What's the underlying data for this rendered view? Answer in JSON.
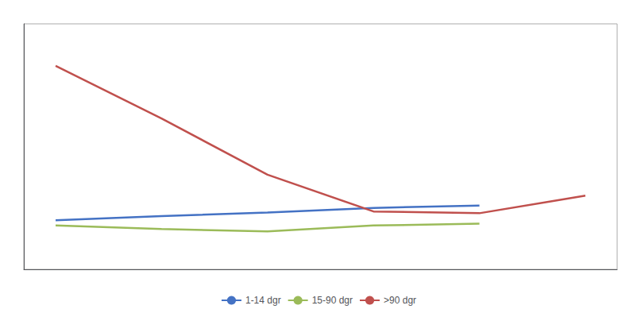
{
  "chart_data": {
    "type": "line",
    "x": [
      1,
      2,
      3,
      4,
      5,
      6
    ],
    "series": [
      {
        "name": "1-14 dgr",
        "color": "#4472C4",
        "values": [
          14.0,
          15.2,
          16.2,
          17.5,
          18.2,
          null
        ]
      },
      {
        "name": "15-90 dgr",
        "color": "#9BBB59",
        "values": [
          12.5,
          11.5,
          10.8,
          12.5,
          13.0,
          null
        ]
      },
      {
        "name": ">90 dgr",
        "color": "#C0504D",
        "values": [
          58.0,
          43.0,
          27.0,
          16.5,
          16.0,
          21.0
        ]
      }
    ],
    "xlim": [
      0.7,
      6.3
    ],
    "ylim": [
      0,
      70
    ],
    "tick_labels": false,
    "grid": false,
    "legend": "bottom"
  }
}
